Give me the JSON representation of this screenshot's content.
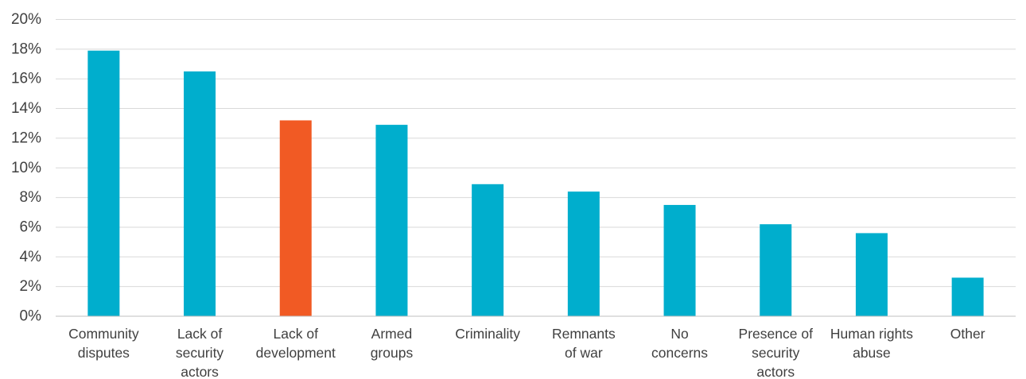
{
  "chart_data": {
    "type": "bar",
    "title": "",
    "xlabel": "",
    "ylabel": "",
    "ylim": [
      0,
      20
    ],
    "y_tick_labels": [
      "0%",
      "2%",
      "4%",
      "6%",
      "8%",
      "10%",
      "12%",
      "14%",
      "16%",
      "18%",
      "20%"
    ],
    "y_tick_values": [
      0,
      2,
      4,
      6,
      8,
      10,
      12,
      14,
      16,
      18,
      20
    ],
    "grid": true,
    "legend": "none",
    "categories": [
      [
        "Community",
        "disputes"
      ],
      [
        "Lack of",
        "security",
        "actors"
      ],
      [
        "Lack of",
        "development"
      ],
      [
        "Armed",
        "groups"
      ],
      [
        "Criminality"
      ],
      [
        "Remnants",
        "of war"
      ],
      [
        "No",
        "concerns"
      ],
      [
        "Presence of",
        "security",
        "actors"
      ],
      [
        "Human rights",
        "abuse"
      ],
      [
        "Other"
      ]
    ],
    "values": [
      17.9,
      16.5,
      13.2,
      12.9,
      8.9,
      8.4,
      7.5,
      6.2,
      5.6,
      2.6
    ],
    "colors": {
      "default": "#00aecd",
      "highlight": "#f15a24",
      "highlight_index": 2
    }
  }
}
